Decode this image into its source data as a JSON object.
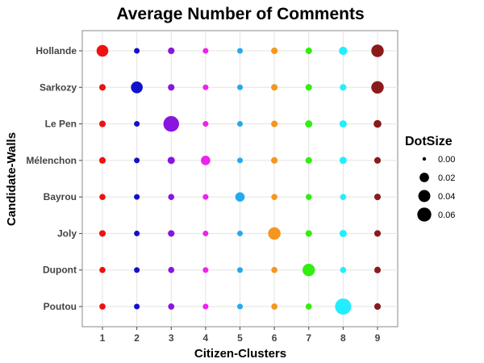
{
  "chart_data": {
    "type": "scatter",
    "title": "Average Number of Comments",
    "xlabel": "Citizen-Clusters",
    "ylabel": "Candidate-Walls",
    "x_categories": [
      "1",
      "2",
      "3",
      "4",
      "5",
      "6",
      "7",
      "8",
      "9"
    ],
    "y_categories": [
      "Hollande",
      "Sarkozy",
      "Le Pen",
      "Mélenchon",
      "Bayrou",
      "Joly",
      "Dupont",
      "Poutou"
    ],
    "cluster_colors": [
      "#ee1111",
      "#1111cc",
      "#8a14e0",
      "#ee22ee",
      "#22aaee",
      "#f5961e",
      "#33ee11",
      "#22eeff",
      "#8b1a1a"
    ],
    "values": [
      [
        0.03,
        0.002,
        0.004,
        0.002,
        0.002,
        0.004,
        0.004,
        0.01,
        0.035
      ],
      [
        0.004,
        0.03,
        0.004,
        0.002,
        0.002,
        0.004,
        0.004,
        0.004,
        0.035
      ],
      [
        0.004,
        0.002,
        0.065,
        0.002,
        0.002,
        0.004,
        0.006,
        0.006,
        0.008
      ],
      [
        0.004,
        0.002,
        0.006,
        0.015,
        0.002,
        0.004,
        0.004,
        0.006,
        0.004
      ],
      [
        0.003,
        0.002,
        0.003,
        0.002,
        0.015,
        0.003,
        0.003,
        0.003,
        0.004
      ],
      [
        0.004,
        0.002,
        0.004,
        0.002,
        0.002,
        0.035,
        0.004,
        0.006,
        0.004
      ],
      [
        0.003,
        0.002,
        0.003,
        0.002,
        0.002,
        0.003,
        0.035,
        0.003,
        0.004
      ],
      [
        0.003,
        0.002,
        0.003,
        0.002,
        0.002,
        0.003,
        0.003,
        0.07,
        0.004
      ]
    ],
    "legend": {
      "title": "DotSize",
      "entries": [
        {
          "label": "0.00",
          "value": 0.0
        },
        {
          "label": "0.02",
          "value": 0.02
        },
        {
          "label": "0.04",
          "value": 0.04
        },
        {
          "label": "0.06",
          "value": 0.06
        }
      ],
      "position": "right"
    },
    "grid": true
  }
}
